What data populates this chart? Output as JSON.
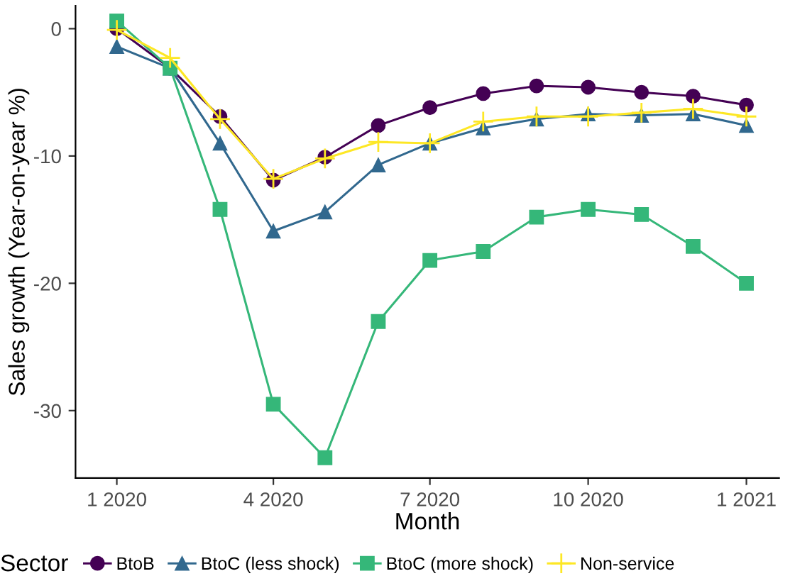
{
  "chart_data": {
    "type": "line",
    "xlabel": "Month",
    "ylabel": "Sales growth (Year-on-year %)",
    "legend_title": "Sector",
    "legend": "bottom",
    "grid": false,
    "x": [
      "2020-01",
      "2020-02",
      "2020-03",
      "2020-04",
      "2020-05",
      "2020-06",
      "2020-07",
      "2020-08",
      "2020-09",
      "2020-10",
      "2020-11",
      "2020-12",
      "2021-01"
    ],
    "xlim": [
      "2019-12-08",
      "2021-01-20"
    ],
    "xticks": [
      {
        "value": "2020-01",
        "label": "1 2020"
      },
      {
        "value": "2020-04",
        "label": "4 2020"
      },
      {
        "value": "2020-07",
        "label": "7 2020"
      },
      {
        "value": "2020-10",
        "label": "10 2020"
      },
      {
        "value": "2021-01",
        "label": "1 2021"
      }
    ],
    "ylim": [
      -35.3,
      1.8
    ],
    "yticks": [
      0,
      -10,
      -20,
      -30
    ],
    "series": [
      {
        "name": "BtoB",
        "color": "#440154",
        "marker": "circle",
        "values": [
          0.0,
          -3.1,
          -6.9,
          -11.9,
          -10.1,
          -7.6,
          -6.2,
          -5.1,
          -4.5,
          -4.6,
          -5.0,
          -5.3,
          -6.0
        ]
      },
      {
        "name": "BtoC (less shock)",
        "color": "#31688e",
        "marker": "triangle",
        "values": [
          -1.4,
          -3.1,
          -9.0,
          -15.9,
          -14.4,
          -10.7,
          -9.0,
          -7.8,
          -7.1,
          -6.7,
          -6.8,
          -6.7,
          -7.6
        ]
      },
      {
        "name": "BtoC (more shock)",
        "color": "#35b779",
        "marker": "square",
        "values": [
          0.6,
          -3.1,
          -14.2,
          -29.5,
          -33.7,
          -23.0,
          -18.2,
          -17.5,
          -14.8,
          -14.2,
          -14.6,
          -17.1,
          -20.0
        ]
      },
      {
        "name": "Non-service",
        "color": "#fde725",
        "marker": "cross",
        "values": [
          -0.1,
          -2.3,
          -7.1,
          -11.8,
          -10.2,
          -8.9,
          -9.0,
          -7.3,
          -6.9,
          -6.9,
          -6.6,
          -6.3,
          -6.9
        ]
      }
    ]
  }
}
